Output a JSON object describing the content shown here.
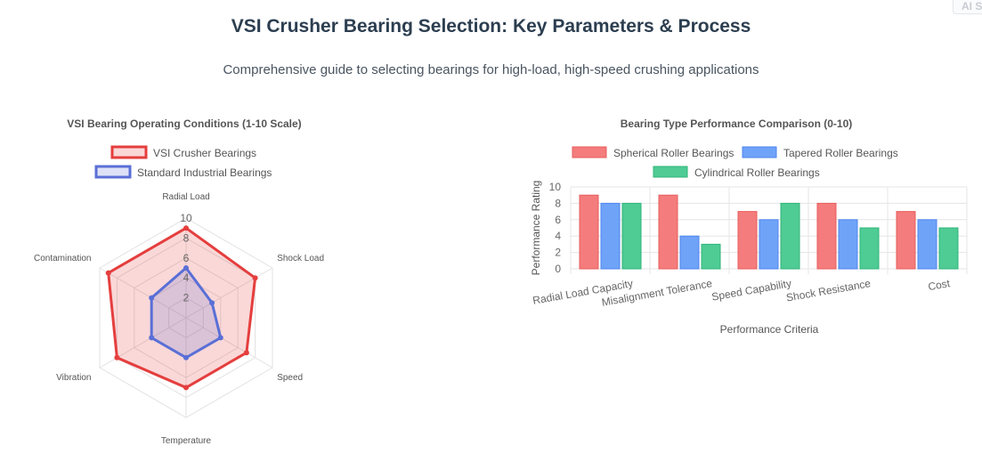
{
  "header": {
    "title": "VSI Crusher Bearing Selection: Key Parameters & Process",
    "subtitle": "Comprehensive guide to selecting bearings for high-load, high-speed crushing applications",
    "badge": "AI S"
  },
  "chart_data": [
    {
      "type": "radar",
      "title": "VSI Bearing Operating Conditions (1-10 Scale)",
      "categories": [
        "Radial Load",
        "Shock Load",
        "Speed",
        "Temperature",
        "Vibration",
        "Contamination"
      ],
      "r_range": [
        0,
        10
      ],
      "r_ticks": [
        2,
        4,
        6,
        8,
        10
      ],
      "legend_position": "top",
      "series": [
        {
          "name": "VSI Crusher Bearings",
          "values": [
            9,
            8,
            7,
            7,
            8,
            9
          ],
          "color": "#e53e3e",
          "fill": "rgba(229,62,62,0.2)"
        },
        {
          "name": "Standard Industrial Bearings",
          "values": [
            5,
            3,
            4,
            4,
            4,
            4
          ],
          "color": "#5a6fd6",
          "fill": "rgba(90,111,214,0.2)"
        }
      ]
    },
    {
      "type": "bar",
      "title": "Bearing Type Performance Comparison (0-10)",
      "categories": [
        "Radial Load Capacity",
        "Misalignment Tolerance",
        "Speed Capability",
        "Shock Resistance",
        "Cost"
      ],
      "xlabel": "Performance Criteria",
      "ylabel": "Performance Rating",
      "ylim": [
        0,
        10
      ],
      "y_ticks": [
        0,
        2,
        4,
        6,
        8,
        10
      ],
      "grid": true,
      "legend_position": "top",
      "series": [
        {
          "name": "Spherical Roller Bearings",
          "values": [
            9,
            9,
            7,
            8,
            7
          ],
          "color": "#f47c7c",
          "border": "#e85c5c"
        },
        {
          "name": "Tapered Roller Bearings",
          "values": [
            8,
            4,
            6,
            6,
            6
          ],
          "color": "#6fa3f7",
          "border": "#4f86f0"
        },
        {
          "name": "Cylindrical Roller Bearings",
          "values": [
            8,
            3,
            8,
            5,
            5
          ],
          "color": "#4fcb94",
          "border": "#2fb57a"
        }
      ]
    }
  ]
}
